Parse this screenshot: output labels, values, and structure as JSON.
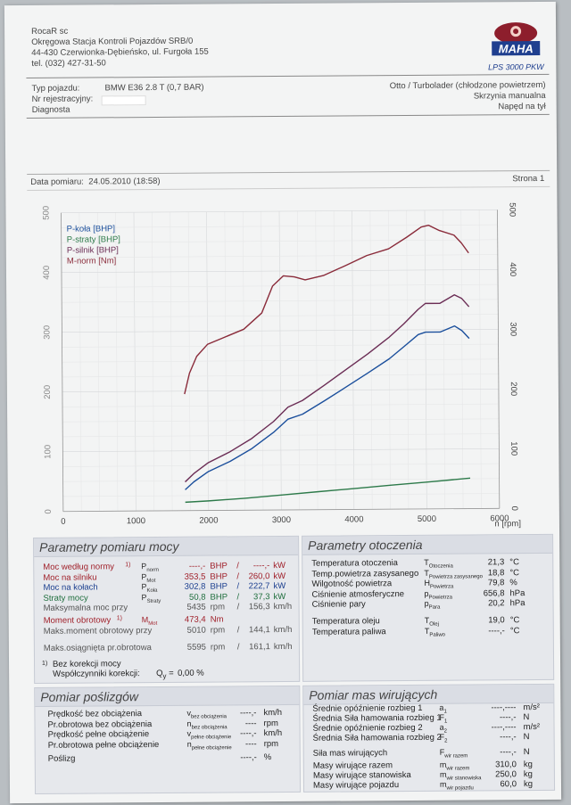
{
  "header": {
    "company": "RocaR sc",
    "station": "Okręgowa Stacja Kontroli Pojazdów SRB/0",
    "address": "44-430 Czerwionka-Dębieńsko, ul. Furgoła 155",
    "phone": "tel. (032) 427-31-50",
    "brand": "MAHA",
    "model": "LPS 3000 PKW"
  },
  "vehicle": {
    "type_label": "Typ pojazdu:",
    "type_value": "BMW E36 2.8 T (0,7 BAR)",
    "reg_label": "Nr rejestracyjny:",
    "diag_label": "Diagnosta",
    "engine": "Otto / Turbolader (chłodzone powietrzem)",
    "gearbox": "Skrzynia manualna",
    "drive": "Napęd na tył"
  },
  "measure": {
    "date_label": "Data pomiaru:",
    "date_value": "24.05.2010 (18:58)",
    "page_label": "Strona 1"
  },
  "chart_data": {
    "type": "line",
    "xlabel": "n [rpm]",
    "xlim": [
      0,
      6000
    ],
    "ylim_left": [
      0,
      500
    ],
    "ylim_right": [
      0,
      500
    ],
    "xticks": [
      0,
      1000,
      2000,
      3000,
      4000,
      5000,
      6000
    ],
    "yticks_left": [
      0,
      100,
      200,
      300,
      400,
      500
    ],
    "yticks_right": [
      0,
      100,
      200,
      300,
      400,
      500
    ],
    "grid": true,
    "legend_position": "top-left",
    "series": [
      {
        "name": "P-koła [BHP]",
        "color": "#1b4f9c",
        "x": [
          1680,
          1800,
          2000,
          2300,
          2600,
          2900,
          3100,
          3300,
          3600,
          3900,
          4200,
          4500,
          4700,
          4900,
          5000,
          5200,
          5400,
          5500,
          5600
        ],
        "y": [
          35,
          48,
          65,
          82,
          103,
          130,
          152,
          160,
          182,
          205,
          228,
          252,
          272,
          292,
          296,
          296,
          306,
          298,
          285
        ]
      },
      {
        "name": "P-straty [BHP]",
        "color": "#2d7a4a",
        "x": [
          1680,
          2000,
          2500,
          3000,
          3500,
          4000,
          4500,
          5000,
          5500,
          5600
        ],
        "y": [
          14,
          16,
          20,
          25,
          30,
          35,
          40,
          45,
          50,
          51
        ]
      },
      {
        "name": "P-silnik [BHP]",
        "color": "#6b2d55",
        "x": [
          1680,
          1800,
          2000,
          2300,
          2600,
          2900,
          3100,
          3300,
          3600,
          3900,
          4200,
          4500,
          4700,
          4900,
          5000,
          5200,
          5400,
          5500,
          5600
        ],
        "y": [
          48,
          62,
          80,
          98,
          120,
          148,
          172,
          183,
          208,
          234,
          260,
          288,
          310,
          334,
          344,
          344,
          358,
          352,
          338
        ]
      },
      {
        "name": "M-norm [Nm]",
        "color": "#8a2b3a",
        "x": [
          1680,
          1750,
          1850,
          2000,
          2200,
          2500,
          2750,
          2900,
          3050,
          3200,
          3350,
          3600,
          3900,
          4200,
          4500,
          4750,
          4950,
          5050,
          5200,
          5400,
          5500,
          5600
        ],
        "y": [
          195,
          230,
          258,
          278,
          288,
          303,
          330,
          375,
          392,
          390,
          385,
          392,
          408,
          425,
          436,
          455,
          472,
          475,
          466,
          458,
          445,
          428
        ]
      }
    ]
  },
  "power": {
    "title": "Parametry pomiaru mocy",
    "rows": [
      {
        "label": "Moc według normy",
        "note": "1)",
        "sym": "P",
        "sub": "norm",
        "v1": "----,-",
        "u1": "BHP",
        "v2": "----,-",
        "u2": "kW",
        "color": "red"
      },
      {
        "label": "Moc na silniku",
        "note": "",
        "sym": "P",
        "sub": "Mot",
        "v1": "353,5",
        "u1": "BHP",
        "v2": "260,0",
        "u2": "kW",
        "color": "red"
      },
      {
        "label": "Moc na kołach",
        "note": "",
        "sym": "P",
        "sub": "Koła",
        "v1": "302,8",
        "u1": "BHP",
        "v2": "222,7",
        "u2": "kW",
        "color": "blue"
      },
      {
        "label": "Straty mocy",
        "note": "",
        "sym": "P",
        "sub": "Straty",
        "v1": "50,8",
        "u1": "BHP",
        "v2": "37,3",
        "u2": "kW",
        "color": "green"
      },
      {
        "label": "Maksymalna moc przy",
        "note": "",
        "sym": "",
        "sub": "",
        "v1": "5435",
        "u1": "rpm",
        "v2": "156,3",
        "u2": "km/h",
        "color": "gray"
      }
    ],
    "moment": {
      "label": "Moment obrotowy",
      "note": "1)",
      "sym": "M",
      "sub": "Mot",
      "value": "473,4",
      "unit": "Nm"
    },
    "moment_at": {
      "label": "Maks.moment obrotowy przy",
      "v1": "5010",
      "u1": "rpm",
      "v2": "144,1",
      "u2": "km/h"
    },
    "max_rpm": {
      "label": "Maks.osiągnięta pr.obrotowa",
      "v1": "5595",
      "u1": "rpm",
      "v2": "161,1",
      "u2": "km/h"
    },
    "correction": {
      "line1": "Bez korekcji mocy",
      "note": "1)",
      "line2": "Współczynniki korekcji:",
      "q": "Q",
      "qsub": "y",
      "eq": "=",
      "value": "0,00 %"
    }
  },
  "env": {
    "title": "Parametry otoczenia",
    "rows": [
      {
        "label": "Temperatura otoczenia",
        "sym": "T",
        "sub": "Otoczenia",
        "value": "21,3",
        "unit": "°C"
      },
      {
        "label": "Temp.powietrza zasysanego",
        "sym": "T",
        "sub": "Powietrza zasysanego",
        "value": "18,8",
        "unit": "°C"
      },
      {
        "label": "Wilgotność powietrza",
        "sym": "H",
        "sub": "Powietrza",
        "value": "79,8",
        "unit": "%"
      },
      {
        "label": "Ciśnienie atmosferyczne",
        "sym": "p",
        "sub": "Powietrza",
        "value": "656,8",
        "unit": "hPa"
      },
      {
        "label": "Ciśnienie pary",
        "sym": "p",
        "sub": "Para",
        "value": "20,2",
        "unit": "hPa"
      },
      {
        "label": "Temperatura oleju",
        "sym": "T",
        "sub": "Olej",
        "value": "19,0",
        "unit": "°C"
      },
      {
        "label": "Temperatura paliwa",
        "sym": "T",
        "sub": "Paliwo",
        "value": "----,-",
        "unit": "°C"
      }
    ]
  },
  "slip": {
    "title": "Pomiar poślizgów",
    "rows": [
      {
        "label": "Prędkość bez obciążenia",
        "sym": "v",
        "sub": "bez obciążenia",
        "value": "----,-",
        "unit": "km/h"
      },
      {
        "label": "Pr.obrotowa bez obciążenia",
        "sym": "n",
        "sub": "bez obciążenia",
        "value": "----",
        "unit": "rpm"
      },
      {
        "label": "Prędkość pełne obciążenie",
        "sym": "v",
        "sub": "pełne obciążenie",
        "value": "----,-",
        "unit": "km/h"
      },
      {
        "label": "Pr.obrotowa pełne obciążenie",
        "sym": "n",
        "sub": "pełne obciążenie",
        "value": "----",
        "unit": "rpm"
      },
      {
        "label": "Poślizg",
        "sym": "",
        "sub": "",
        "value": "----,-",
        "unit": "%"
      }
    ]
  },
  "mass": {
    "title": "Pomiar mas wirujących",
    "rows": [
      {
        "label": "Średnie opóźnienie rozbieg 1",
        "sym": "a",
        "sub": "1",
        "value": "----,----",
        "unit": "m/s²"
      },
      {
        "label": "Średnia Siła hamowania rozbieg 1",
        "sym": "F",
        "sub": "1",
        "value": "----,-",
        "unit": "N"
      },
      {
        "label": "Średnie opóźnienie rozbieg 2",
        "sym": "a",
        "sub": "2",
        "value": "----,----",
        "unit": "m/s²"
      },
      {
        "label": "Średnia Siła hamowania rozbieg 2",
        "sym": "F",
        "sub": "2",
        "value": "----,-",
        "unit": "N"
      },
      {
        "label": "Siła mas wirujących",
        "sym": "F",
        "sub": "wir razem",
        "value": "----,-",
        "unit": "N"
      },
      {
        "label": "Masy wirujące razem",
        "sym": "m",
        "sub": "wir razem",
        "value": "310,0",
        "unit": "kg"
      },
      {
        "label": "Masy wirujące stanowiska",
        "sym": "m",
        "sub": "wir stanowiska",
        "value": "250,0",
        "unit": "kg"
      },
      {
        "label": "Masy wirujące pojazdu",
        "sym": "m",
        "sub": "wir pojazdu",
        "value": "60,0",
        "unit": "kg"
      }
    ]
  }
}
